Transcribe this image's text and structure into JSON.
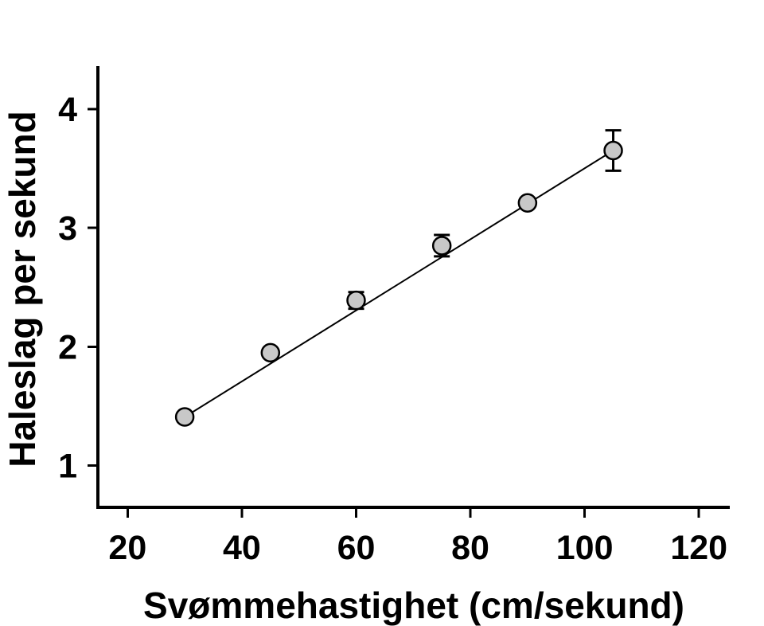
{
  "chart_data": {
    "type": "scatter",
    "title": "",
    "xlabel": "Svømmehastighet (cm/sekund)",
    "ylabel": "Haleslag per sekund",
    "x": [
      30,
      45,
      60,
      75,
      90,
      105
    ],
    "y": [
      1.41,
      1.95,
      2.39,
      2.85,
      3.21,
      3.65
    ],
    "yerr": [
      0,
      0,
      0.07,
      0.09,
      0,
      0.17
    ],
    "fit_line": {
      "x": [
        30,
        105
      ],
      "y": [
        1.41,
        3.65
      ]
    },
    "xticks": [
      20,
      40,
      60,
      80,
      100,
      120
    ],
    "yticks": [
      1,
      2,
      3,
      4
    ],
    "xlim": [
      14.8,
      125.4
    ],
    "ylim": [
      0.65,
      4.36
    ],
    "grid": false,
    "legend": null,
    "marker": {
      "shape": "circle",
      "fill": "#c8c8c8",
      "stroke": "#000000",
      "radius_px": 11
    },
    "colors": {
      "axis": "#000000",
      "text": "#000000",
      "line": "#000000",
      "background": "#ffffff"
    }
  }
}
